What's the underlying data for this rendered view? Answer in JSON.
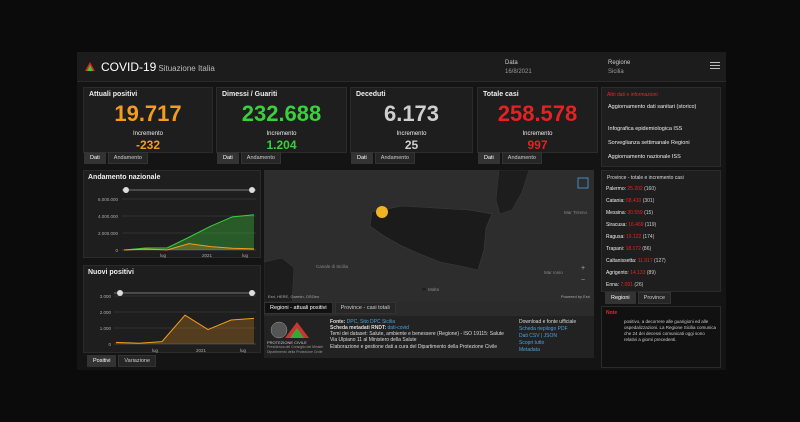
{
  "header": {
    "title": "COVID-19",
    "subtitle": "Situazione Italia",
    "date_label": "Data",
    "date_value": "16/8/2021",
    "region_label": "Regione",
    "region_value": "Sicilia"
  },
  "kpis": [
    {
      "title": "Attuali positivi",
      "value": "19.717",
      "inc_label": "Incremento",
      "inc": "-232",
      "color": "#f39c1f"
    },
    {
      "title": "Dimessi / Guariti",
      "value": "232.688",
      "inc_label": "Incremento",
      "inc": "1.204",
      "color": "#3ccf3c"
    },
    {
      "title": "Deceduti",
      "value": "6.173",
      "inc_label": "Incremento",
      "inc": "25",
      "color": "#cfcfcf"
    },
    {
      "title": "Totale casi",
      "value": "258.578",
      "inc_label": "Incremento",
      "inc": "997",
      "color": "#e52222"
    }
  ],
  "tabs": {
    "dati": "Dati",
    "andamento": "Andamento",
    "positivi": "Positivi",
    "variazione": "Variazione",
    "regioni": "Regioni",
    "province": "Province"
  },
  "news": {
    "title": "Altri dati e informazioni",
    "items": [
      "Aggiornamento dati sanitari (storico)",
      "Infografica epidemiologica ISS",
      "Sorveglianza settimanale Regioni",
      "Aggiornamento nazionale ISS"
    ]
  },
  "province_panel": {
    "title": "Province - totale e incremento casi",
    "rows": [
      {
        "name": "Palermo:",
        "value": "25.202",
        "inc": "(160)"
      },
      {
        "name": "Catania:",
        "value": "68.410",
        "inc": "(301)"
      },
      {
        "name": "Messina:",
        "value": "30.559",
        "inc": "(15)"
      },
      {
        "name": "Siracusa:",
        "value": "16.469",
        "inc": "(119)"
      },
      {
        "name": "Ragusa:",
        "value": "16.122",
        "inc": "(174)"
      },
      {
        "name": "Trapani:",
        "value": "18.172",
        "inc": "(86)"
      },
      {
        "name": "Caltanissetta:",
        "value": "11.917",
        "inc": "(127)"
      },
      {
        "name": "Agrigento:",
        "value": "14.133",
        "inc": "(89)"
      },
      {
        "name": "Enna:",
        "value": "7.091",
        "inc": "(26)"
      }
    ]
  },
  "andamento": {
    "title": "Andamento nazionale",
    "yticks": [
      "6.000.000",
      "4.000.000",
      "2.000.000",
      "0"
    ],
    "xticks": [
      "lug",
      "2021",
      "lug"
    ]
  },
  "nuovi": {
    "title": "Nuovi positivi",
    "yticks": [
      "3.000",
      "2.000",
      "1.000",
      "0"
    ],
    "xticks": [
      "lug",
      "2021",
      "lug"
    ]
  },
  "map": {
    "labels": [
      "Mar Tirreno",
      "Canale di Sicilia",
      "Malta",
      "Mar Ionio"
    ],
    "attribution": "Esri, HERE, Garmin, OSGeo",
    "powered": "Powered by Esri",
    "tab1": "Regioni - attuali positivi",
    "tab2": "Province - casi totali"
  },
  "footer": {
    "org_line1": "PROTEZIONE CIVILE",
    "org_line2": "Presidenza del Consiglio dei Ministri",
    "org_line3": "Dipartimento della Protezione Civile",
    "fonte_label": "Fonte:",
    "fonte_value": "DPC, Sito DPC Sicilia",
    "scheda_label": "Scheda metadati RNDT:",
    "scheda_value": "dati-covid",
    "tema_label": "Temi dei dataset:",
    "tema_value": "Salute, ambiente e benessere (Regione) - ISO 19115: Salute",
    "via": "Via Ulpiano 11 al Ministero della Salute",
    "elab": "Elaborazione e gestione dati a cura del Dipartimento della Protezione Civile",
    "downloads_title": "Download e fonte ufficiale",
    "downloads": [
      "Scheda riepilogo PDF",
      "Dati CSV | JSON",
      "Scopri tutto",
      "Metadata"
    ]
  },
  "note": {
    "title": "Note",
    "text": "positivo, a decorrere alle guarigioni ed alle ospedalizzazioni. La Regione Sicilia comunica che 24 dei decessi comunicati oggi sono relativi a giorni precedenti."
  },
  "chart_data": [
    {
      "type": "area",
      "title": "Andamento nazionale",
      "x": [
        "2020-02",
        "2020-05",
        "2020-08",
        "2020-11",
        "2021-02",
        "2021-05",
        "2021-08"
      ],
      "series": [
        {
          "values": [
            0,
            230000,
            250000,
            1500000,
            2800000,
            3900000,
            4150000
          ]
        },
        {
          "values": [
            0,
            100000,
            20000,
            750000,
            400000,
            200000,
            130000
          ]
        }
      ],
      "ylim": [
        0,
        6000000
      ]
    },
    {
      "type": "area",
      "title": "Nuovi positivi",
      "x": [
        "2020-02",
        "2020-05",
        "2020-08",
        "2020-11",
        "2021-02",
        "2021-05",
        "2021-08"
      ],
      "series": [
        {
          "values": [
            100,
            50,
            150,
            1800,
            900,
            1500,
            1600
          ]
        }
      ],
      "ylim": [
        0,
        3000
      ]
    }
  ]
}
